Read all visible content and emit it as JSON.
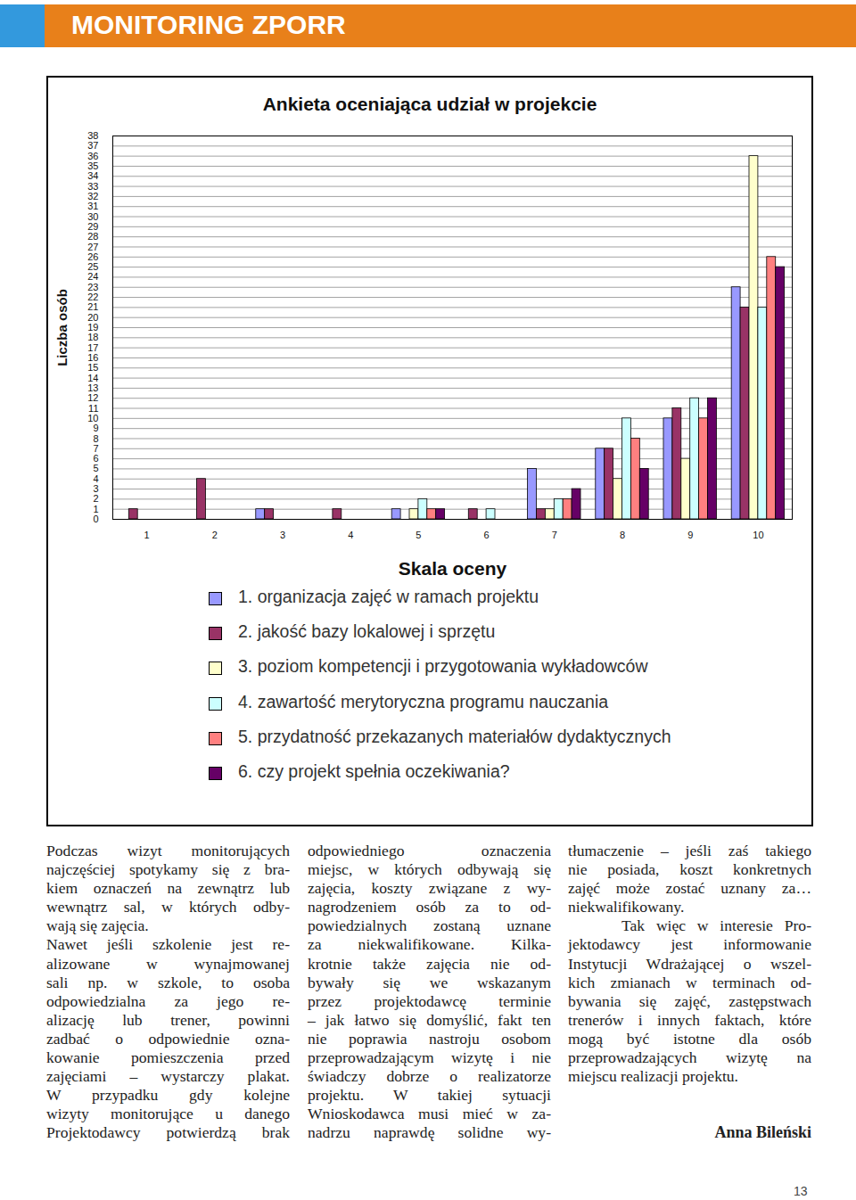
{
  "header": {
    "title": "MONITORING ZPORR"
  },
  "chart_data": {
    "type": "bar",
    "title": "Ankieta oceniająca udział w projekcie",
    "xlabel": "Skala oceny",
    "ylabel": "Liczba osób",
    "categories": [
      "1",
      "2",
      "3",
      "4",
      "5",
      "6",
      "7",
      "8",
      "9",
      "10"
    ],
    "series": [
      {
        "name": "1. organizacja zajęć w ramach projektu",
        "color": "#9999ff",
        "values": [
          0,
          0,
          1,
          0,
          1,
          0,
          5,
          7,
          10,
          23
        ]
      },
      {
        "name": "2. jakość bazy lokalowej i sprzętu",
        "color": "#993366",
        "values": [
          1,
          4,
          1,
          1,
          0,
          1,
          1,
          7,
          11,
          21
        ]
      },
      {
        "name": "3. poziom kompetencji i przygotowania wykładowców",
        "color": "#ffffcc",
        "values": [
          0,
          0,
          0,
          0,
          1,
          0,
          1,
          4,
          6,
          36
        ]
      },
      {
        "name": "4. zawartość merytoryczna programu nauczania",
        "color": "#ccffff",
        "values": [
          0,
          0,
          0,
          0,
          2,
          1,
          2,
          10,
          12,
          21
        ]
      },
      {
        "name": "5. przydatność przekazanych materiałów dydaktycznych",
        "color": "#ff8080",
        "values": [
          0,
          0,
          0,
          0,
          1,
          0,
          2,
          8,
          10,
          26
        ]
      },
      {
        "name": "6. czy projekt spełnia oczekiwania?",
        "color": "#660066",
        "values": [
          0,
          0,
          0,
          0,
          1,
          0,
          3,
          5,
          12,
          25
        ]
      }
    ],
    "ylim": [
      0,
      38
    ],
    "yticks": [
      0,
      1,
      2,
      3,
      4,
      5,
      6,
      7,
      8,
      9,
      10,
      11,
      12,
      13,
      14,
      15,
      16,
      17,
      18,
      19,
      20,
      21,
      22,
      23,
      24,
      25,
      26,
      27,
      28,
      29,
      30,
      31,
      32,
      33,
      34,
      35,
      36,
      37,
      38
    ],
    "grid": true,
    "legend": "bottom"
  },
  "columns": [
    {
      "paragraphs": [
        {
          "lines": [
            "Podczas wizyt monitorujących",
            "najczęściej spotykamy się z bra-",
            "kiem oznaczeń na zewnątrz lub",
            "wewnątrz sal, w których odby-",
            "wają się zajęcia."
          ]
        },
        {
          "lines": [
            "Nawet jeśli szkolenie jest re-",
            "alizowane w wynajmowanej",
            "sali np. w szkole, to osoba",
            "odpowiedzialna za jego re-",
            "alizację lub trener, powinni",
            "zadbać o odpowiednie ozna-",
            "kowanie pomieszczenia przed",
            "zajęciami – wystarczy plakat.",
            "W przypadku gdy kolejne",
            "wizyty monitorujące u danego",
            "Projektodawcy potwierdzą brak"
          ]
        }
      ]
    },
    {
      "paragraphs": [
        {
          "lines": [
            "odpowiedniego oznaczenia",
            "miejsc, w których odbywają się",
            "zajęcia, koszty związane z wy-",
            "nagrodzeniem osób za to od-",
            "powiedzialnych zostaną uznane",
            "za niekwalifikowane. Kilka-",
            "krotnie także zajęcia nie od-",
            "bywały się we wskazanym",
            "przez projektodawcę terminie",
            "– jak łatwo się domyślić, fakt ten",
            "nie poprawia nastroju osobom",
            "przeprowadzającym wizytę i nie",
            "świadczy dobrze o realizatorze",
            "projektu. W takiej sytuacji",
            "Wnioskodawca musi mieć w za-",
            "nadrzu naprawdę solidne wy-"
          ]
        }
      ]
    },
    {
      "paragraphs": [
        {
          "lines": [
            "tłumaczenie – jeśli zaś takiego",
            "nie posiada, koszt konkretnych",
            "zajęć może zostać uznany za…",
            "niekwalifikowany."
          ]
        },
        {
          "lines": [
            "Tak więc w interesie Pro-",
            "jektodawcy jest informowanie",
            "Instytucji Wdrażającej o wszel-",
            "kich zmianach w terminach od-",
            "bywania się zajęć, zastępstwach",
            "trenerów i innych faktach, które",
            "mogą być istotne dla osób",
            "przeprowadzających wizytę na",
            "miejscu realizacji projektu."
          ]
        }
      ]
    }
  ],
  "author": "Anna Bileński",
  "page_number": "13"
}
